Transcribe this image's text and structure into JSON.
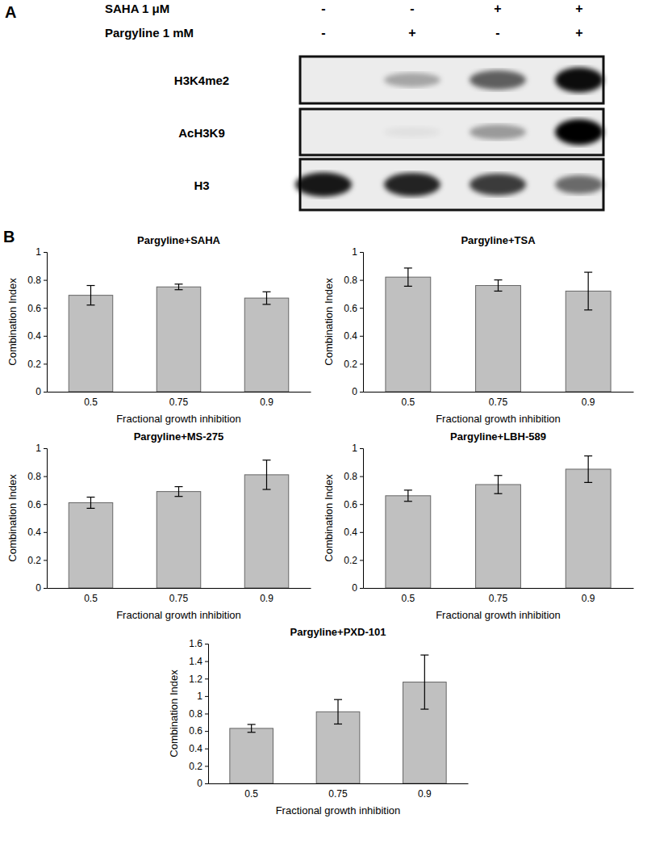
{
  "panel_a": {
    "label": "A",
    "conditions": [
      {
        "label": "SAHA 1 μM",
        "signs": [
          "-",
          "-",
          "+",
          "+"
        ]
      },
      {
        "label": "Pargyline 1 mM",
        "signs": [
          "-",
          "+",
          "-",
          "+"
        ]
      }
    ],
    "rows": [
      {
        "label": "H3K4me2",
        "intensity": [
          0,
          0.3,
          0.6,
          0.95
        ]
      },
      {
        "label": "AcH3K9",
        "intensity": [
          0,
          0.05,
          0.35,
          1
        ]
      },
      {
        "label": "H3",
        "intensity": [
          0.9,
          0.85,
          0.75,
          0.55
        ]
      }
    ]
  },
  "panel_b_label": "B",
  "chart_data": [
    {
      "type": "bar",
      "title": "Pargyline+SAHA",
      "x_label": "Fractional growth inhibition",
      "y_label": "Combination Index",
      "categories": [
        "0.5",
        "0.75",
        "0.9"
      ],
      "values": [
        0.69,
        0.75,
        0.67
      ],
      "errors": [
        0.07,
        0.02,
        0.045
      ],
      "color": "#c0c0c0",
      "ylim": [
        0,
        1
      ],
      "yticks": [
        0,
        0.2,
        0.4,
        0.6,
        0.8,
        1
      ],
      "grid": false
    },
    {
      "type": "bar",
      "title": "Pargyline+TSA",
      "x_label": "Fractional growth inhibition",
      "y_label": "Combination Index",
      "categories": [
        "0.5",
        "0.75",
        "0.9"
      ],
      "values": [
        0.82,
        0.76,
        0.72
      ],
      "errors": [
        0.065,
        0.04,
        0.135
      ],
      "color": "#c0c0c0",
      "ylim": [
        0,
        1
      ],
      "yticks": [
        0,
        0.2,
        0.4,
        0.6,
        0.8,
        1
      ],
      "grid": false
    },
    {
      "type": "bar",
      "title": "Pargyline+MS-275",
      "x_label": "Fractional growth inhibition",
      "y_label": "Combination Index",
      "categories": [
        "0.5",
        "0.75",
        "0.9"
      ],
      "values": [
        0.61,
        0.69,
        0.81
      ],
      "errors": [
        0.04,
        0.035,
        0.105
      ],
      "color": "#c0c0c0",
      "ylim": [
        0,
        1
      ],
      "yticks": [
        0,
        0.2,
        0.4,
        0.6,
        0.8,
        1
      ],
      "grid": false
    },
    {
      "type": "bar",
      "title": "Pargyline+LBH-589",
      "x_label": "Fractional growth inhibition",
      "y_label": "Combination Index",
      "categories": [
        "0.5",
        "0.75",
        "0.9"
      ],
      "values": [
        0.66,
        0.74,
        0.85
      ],
      "errors": [
        0.04,
        0.065,
        0.095
      ],
      "color": "#c0c0c0",
      "ylim": [
        0,
        1
      ],
      "yticks": [
        0,
        0.2,
        0.4,
        0.6,
        0.8,
        1
      ],
      "grid": false
    },
    {
      "type": "bar",
      "title": "Pargyline+PXD-101",
      "x_label": "Fractional growth inhibition",
      "y_label": "Combination Index",
      "categories": [
        "0.5",
        "0.75",
        "0.9"
      ],
      "values": [
        0.63,
        0.82,
        1.16
      ],
      "errors": [
        0.045,
        0.14,
        0.31
      ],
      "color": "#c0c0c0",
      "ylim": [
        0,
        1.6
      ],
      "yticks": [
        0,
        0.2,
        0.4,
        0.6,
        0.8,
        1,
        1.2,
        1.4,
        1.6
      ],
      "grid": false
    }
  ]
}
